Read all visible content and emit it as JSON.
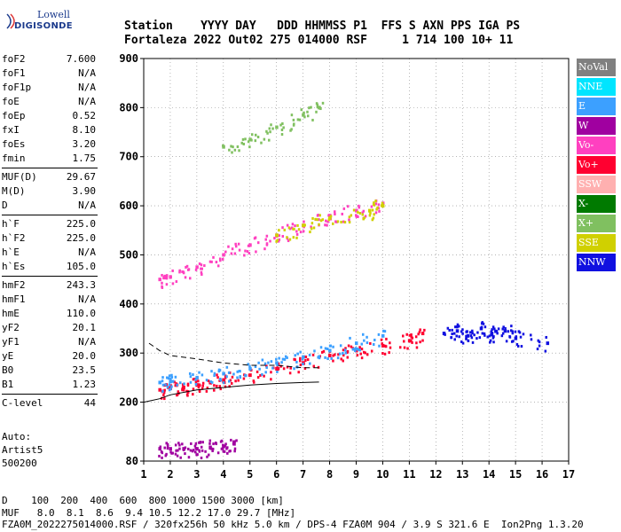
{
  "logo": {
    "line1": "Lowell",
    "line2": "DIGISONDE"
  },
  "header": {
    "line1": "Station    YYYY DAY   DDD HHMMSS P1  FFS S AXN PPS IGA PS",
    "line2": "Fortaleza 2022 Out02 275 014000 RSF     1 714 100 10+ 11"
  },
  "params": [
    {
      "name": "foF2",
      "value": "7.600"
    },
    {
      "name": "foF1",
      "value": "N/A"
    },
    {
      "name": "foF1p",
      "value": "N/A"
    },
    {
      "name": "foE",
      "value": "N/A"
    },
    {
      "name": "foEp",
      "value": "0.52"
    },
    {
      "name": "fxI",
      "value": "8.10"
    },
    {
      "name": "foEs",
      "value": "3.20"
    },
    {
      "name": "fmin",
      "value": "1.75"
    },
    {
      "name": "MUF(D)",
      "value": "29.67"
    },
    {
      "name": "M(D)",
      "value": "3.90"
    },
    {
      "name": "D",
      "value": "N/A"
    },
    {
      "name": "h`F",
      "value": "225.0"
    },
    {
      "name": "h`F2",
      "value": "225.0"
    },
    {
      "name": "h`E",
      "value": "N/A"
    },
    {
      "name": "h`Es",
      "value": "105.0"
    },
    {
      "name": "hmF2",
      "value": "243.3"
    },
    {
      "name": "hmF1",
      "value": "N/A"
    },
    {
      "name": "hmE",
      "value": "110.0"
    },
    {
      "name": "yF2",
      "value": "20.1"
    },
    {
      "name": "yF1",
      "value": "N/A"
    },
    {
      "name": "yE",
      "value": "20.0"
    },
    {
      "name": "B0",
      "value": "23.5"
    },
    {
      "name": "B1",
      "value": "1.23"
    },
    {
      "name": "C-level",
      "value": "44"
    }
  ],
  "auto": {
    "line1": "Auto:",
    "line2": "Artist5",
    "line3": "500200"
  },
  "footer": {
    "line1": "D    100  200  400  600  800 1000 1500 3000 [km]",
    "line2": "MUF   8.0  8.1  8.6  9.4 10.5 12.2 17.0 29.7 [MHz]",
    "line3": "FZA0M_2022275014000.RSF / 320fx256h 50 kHz 5.0 km / DPS-4 FZA0M 904 / 3.9 S 321.6 E  Ion2Png 1.3.20"
  },
  "legend": [
    {
      "label": "NoVal",
      "color": "#808080"
    },
    {
      "label": "NNE",
      "color": "#00e5ff"
    },
    {
      "label": "E",
      "color": "#3ca0ff"
    },
    {
      "label": "W",
      "color": "#a000a0"
    },
    {
      "label": "Vo-",
      "color": "#ff40c0"
    },
    {
      "label": "Vo+",
      "color": "#ff0030"
    },
    {
      "label": "SSW",
      "color": "#ffb0b0"
    },
    {
      "label": "X-",
      "color": "#007a00"
    },
    {
      "label": "X+",
      "color": "#80c060"
    },
    {
      "label": "SSE",
      "color": "#d0d000"
    },
    {
      "label": "NNW",
      "color": "#1010e0"
    }
  ],
  "chart_data": {
    "type": "scatter",
    "xlabel": "",
    "ylabel": "",
    "xlim": [
      1,
      17
    ],
    "ylim": [
      80,
      900
    ],
    "xticks": [
      1,
      2,
      3,
      4,
      5,
      6,
      7,
      8,
      9,
      10,
      11,
      12,
      13,
      14,
      15,
      16,
      17
    ],
    "yticks": [
      80,
      200,
      300,
      400,
      500,
      600,
      700,
      800,
      900
    ],
    "grid": true,
    "series": [
      {
        "name": "Vo+",
        "points": [
          [
            1.6,
            225
          ],
          [
            2,
            228
          ],
          [
            2.5,
            230
          ],
          [
            3,
            235
          ],
          [
            3.5,
            240
          ],
          [
            4,
            245
          ],
          [
            5,
            255
          ],
          [
            6,
            268
          ],
          [
            7,
            280
          ],
          [
            8,
            295
          ],
          [
            9,
            305
          ],
          [
            10,
            315
          ],
          [
            11,
            325
          ],
          [
            11.5,
            340
          ]
        ]
      },
      {
        "name": "E",
        "points": [
          [
            1.6,
            240
          ],
          [
            2,
            242
          ],
          [
            3,
            250
          ],
          [
            4,
            258
          ],
          [
            5,
            268
          ],
          [
            6,
            280
          ],
          [
            7,
            292
          ],
          [
            8,
            305
          ],
          [
            9,
            320
          ],
          [
            10,
            335
          ]
        ]
      },
      {
        "name": "NNW",
        "points": [
          [
            12.3,
            340
          ],
          [
            12.8,
            345
          ],
          [
            13.2,
            335
          ],
          [
            13.7,
            350
          ],
          [
            14.1,
            340
          ],
          [
            14.6,
            345
          ],
          [
            15,
            330
          ],
          [
            16.2,
            320
          ]
        ]
      },
      {
        "name": "Vo-",
        "points": [
          [
            1.6,
            450
          ],
          [
            2,
            455
          ],
          [
            3,
            475
          ],
          [
            4,
            500
          ],
          [
            5,
            520
          ],
          [
            6,
            540
          ],
          [
            7,
            560
          ],
          [
            8,
            580
          ],
          [
            9,
            590
          ],
          [
            10,
            605
          ]
        ]
      },
      {
        "name": "SSE",
        "points": [
          [
            6,
            540
          ],
          [
            7,
            560
          ],
          [
            8,
            575
          ],
          [
            9.5,
            590
          ],
          [
            10,
            600
          ]
        ]
      },
      {
        "name": "W",
        "points": [
          [
            1.6,
            105
          ],
          [
            2,
            105
          ],
          [
            2.5,
            105
          ],
          [
            3,
            105
          ],
          [
            3.5,
            108
          ],
          [
            4,
            110
          ],
          [
            4.4,
            115
          ]
        ]
      },
      {
        "name": "X+",
        "points": [
          [
            4,
            720
          ],
          [
            5,
            735
          ],
          [
            6,
            760
          ],
          [
            7,
            785
          ],
          [
            7.6,
            800
          ]
        ]
      }
    ],
    "traces": [
      {
        "name": "dashed",
        "style": "dashed",
        "points": [
          [
            1.2,
            320
          ],
          [
            1.6,
            305
          ],
          [
            2,
            295
          ],
          [
            3,
            288
          ],
          [
            4,
            280
          ],
          [
            5,
            275
          ],
          [
            6,
            275
          ],
          [
            7,
            270
          ],
          [
            7.6,
            270
          ]
        ]
      },
      {
        "name": "solid",
        "style": "solid",
        "points": [
          [
            1,
            200
          ],
          [
            1.6,
            207
          ],
          [
            2,
            215
          ],
          [
            3,
            225
          ],
          [
            4,
            230
          ],
          [
            5,
            235
          ],
          [
            6,
            238
          ],
          [
            7,
            240
          ],
          [
            7.6,
            241
          ]
        ]
      }
    ]
  }
}
